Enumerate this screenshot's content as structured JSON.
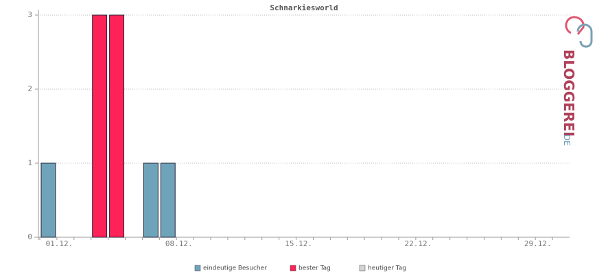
{
  "chart_data": {
    "type": "bar",
    "title": "Schnarkiesworld",
    "categories": [
      "01.12.",
      null,
      null,
      null,
      null,
      null,
      null,
      "08.12.",
      null,
      null,
      null,
      null,
      null,
      null,
      "15.12.",
      null,
      null,
      null,
      null,
      null,
      null,
      "22.12.",
      null,
      null,
      null,
      null,
      null,
      null,
      "29.12.",
      null,
      null
    ],
    "series": [
      {
        "name": "eindeutige Besucher",
        "color": "#6fa3ba",
        "values": [
          1,
          0,
          0,
          null,
          null,
          0,
          1,
          1,
          0,
          0,
          0,
          0,
          0,
          0,
          0,
          0,
          0,
          0,
          0,
          0,
          0,
          0,
          0,
          0,
          0,
          0,
          0,
          0,
          0,
          0,
          0
        ]
      },
      {
        "name": "bester Tag",
        "color": "#ff2258",
        "values": [
          null,
          null,
          null,
          3,
          3,
          null,
          null,
          null,
          null,
          null,
          null,
          null,
          null,
          null,
          null,
          null,
          null,
          null,
          null,
          null,
          null,
          null,
          null,
          null,
          null,
          null,
          null,
          null,
          null,
          null,
          null
        ]
      },
      {
        "name": "heutiger Tag",
        "color": "#d4d4d4",
        "values": [
          null,
          null,
          null,
          null,
          null,
          null,
          null,
          null,
          null,
          null,
          null,
          null,
          null,
          null,
          null,
          null,
          null,
          null,
          null,
          null,
          null,
          null,
          null,
          null,
          null,
          null,
          null,
          null,
          null,
          null,
          null
        ]
      }
    ],
    "ylim": [
      0,
      3
    ],
    "yticks": [
      0,
      1,
      2,
      3
    ],
    "grid": true,
    "logo": {
      "main": "BLOGGEREI",
      "suffix": ".DE"
    }
  }
}
